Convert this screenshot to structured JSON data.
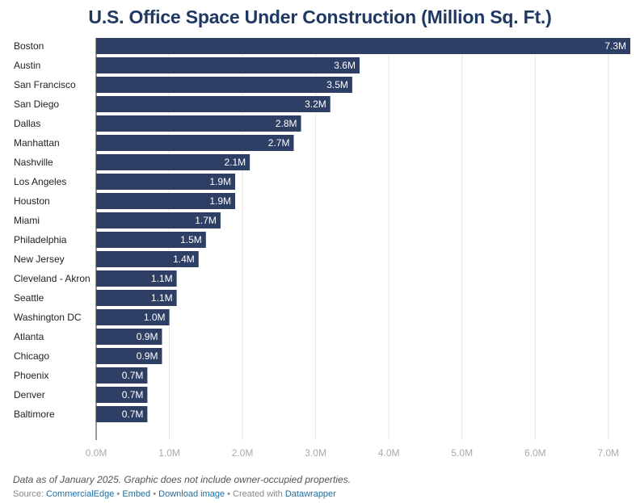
{
  "title": "U.S. Office Space Under Construction (Million Sq. Ft.)",
  "chart_data": {
    "type": "bar",
    "orientation": "horizontal",
    "title": "U.S. Office Space Under Construction (Million Sq. Ft.)",
    "categories": [
      "Boston",
      "Austin",
      "San Francisco",
      "San Diego",
      "Dallas",
      "Manhattan",
      "Nashville",
      "Los Angeles",
      "Houston",
      "Miami",
      "Philadelphia",
      "New Jersey",
      "Cleveland - Akron",
      "Seattle",
      "Washington DC",
      "Atlanta",
      "Chicago",
      "Phoenix",
      "Denver",
      "Baltimore"
    ],
    "values": [
      7.3,
      3.6,
      3.5,
      3.2,
      2.8,
      2.7,
      2.1,
      1.9,
      1.9,
      1.7,
      1.5,
      1.4,
      1.1,
      1.1,
      1.0,
      0.9,
      0.9,
      0.7,
      0.7,
      0.7
    ],
    "value_labels": [
      "7.3M",
      "3.6M",
      "3.5M",
      "3.2M",
      "2.8M",
      "2.7M",
      "2.1M",
      "1.9M",
      "1.9M",
      "1.7M",
      "1.5M",
      "1.4M",
      "1.1M",
      "1.1M",
      "1.0M",
      "0.9M",
      "0.9M",
      "0.7M",
      "0.7M",
      "0.7M"
    ],
    "xlim": [
      0,
      7.3
    ],
    "xticks": [
      0,
      1,
      2,
      3,
      4,
      5,
      6,
      7
    ],
    "xtick_labels": [
      "0.0M",
      "1.0M",
      "2.0M",
      "3.0M",
      "4.0M",
      "5.0M",
      "6.0M",
      "7.0M"
    ],
    "xlabel": "",
    "ylabel": "",
    "grid": true,
    "bar_color": "#2e3f66",
    "grid_color": "#e6e6e6"
  },
  "footer": {
    "note": "Data as of January 2025. Graphic does not include owner-occupied properties.",
    "source_prefix": "Source: ",
    "source_link": "CommercialEdge",
    "sep1": " • ",
    "embed": "Embed",
    "sep2": " • ",
    "download": "Download image",
    "sep3": " • Created with ",
    "datawrapper": "Datawrapper"
  },
  "colors": {
    "title": "#1f3864",
    "link": "#1a6fa3"
  }
}
